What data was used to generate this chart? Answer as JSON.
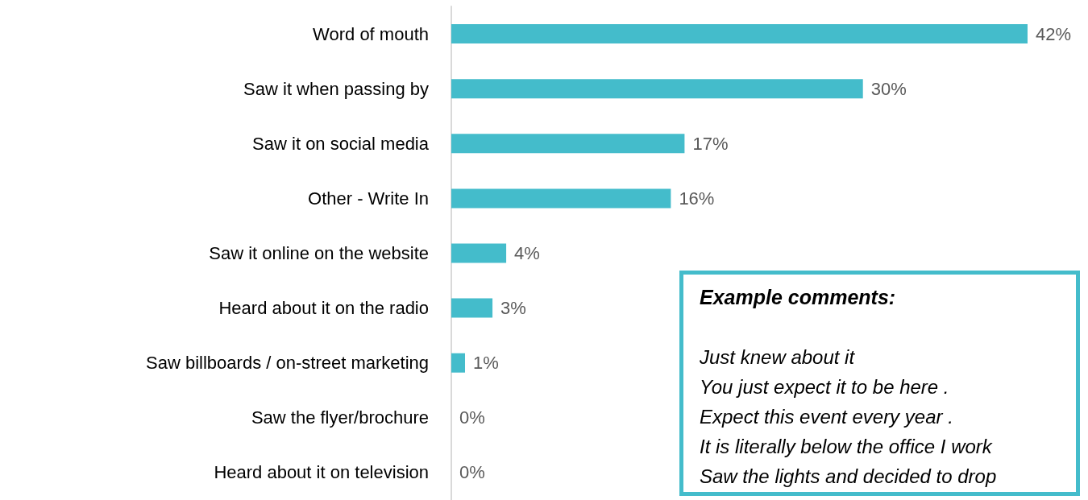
{
  "chart_data": {
    "type": "bar",
    "orientation": "horizontal",
    "categories": [
      "Word of mouth",
      "Saw it when passing by",
      "Saw it on social media",
      "Other - Write In",
      "Saw it online on the website",
      "Heard about it on the radio",
      "Saw billboards / on-street marketing",
      "Saw the flyer/brochure",
      "Heard about it on television"
    ],
    "values": [
      42,
      30,
      17,
      16,
      4,
      3,
      1,
      0,
      0
    ],
    "value_labels": [
      "42%",
      "30%",
      "17%",
      "16%",
      "4%",
      "3%",
      "1%",
      "0%",
      "0%"
    ],
    "color": "#44bccb",
    "annotations": [
      "Example comments:",
      "Just knew about it",
      "You just expect it to be here .",
      "Expect this event every year .",
      "It is literally below the office I work",
      "Saw the lights and decided to drop"
    ]
  }
}
